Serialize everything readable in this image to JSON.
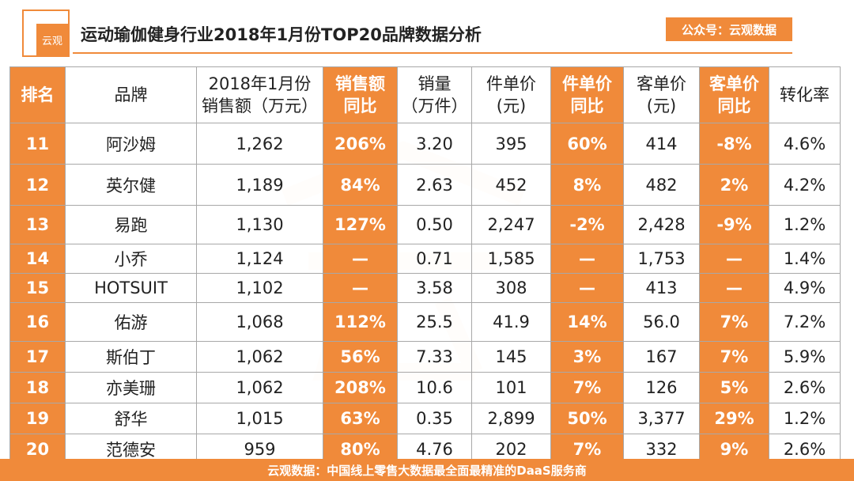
{
  "header": {
    "logo_text": "云观",
    "title": "运动瑜伽健身行业2018年1月份TOP20品牌数据分析",
    "wechat_badge": "公众号：云观数据"
  },
  "colors": {
    "accent": "#f08a3a"
  },
  "table": {
    "headers": {
      "rank": "排名",
      "brand": "品牌",
      "sales_line1": "2018年1月份",
      "sales_line2": "销售额（万元）",
      "sales_yoy_line1": "销售额",
      "sales_yoy_line2": "同比",
      "volume_line1": "销量",
      "volume_line2": "（万件）",
      "unit_price_line1": "件单价",
      "unit_price_line2": "(元)",
      "unit_price_yoy_line1": "件单价",
      "unit_price_yoy_line2": "同比",
      "cust_price_line1": "客单价",
      "cust_price_line2": "(元)",
      "cust_price_yoy_line1": "客单价",
      "cust_price_yoy_line2": "同比",
      "conversion": "转化率"
    },
    "rows": [
      {
        "rank": "11",
        "brand": "阿沙姆",
        "sales": "1,262",
        "sales_yoy": "206%",
        "volume": "3.20",
        "unit_price": "395",
        "unit_price_yoy": "60%",
        "cust_price": "414",
        "cust_price_yoy": "-8%",
        "conversion": "4.6%"
      },
      {
        "rank": "12",
        "brand": "英尔健",
        "sales": "1,189",
        "sales_yoy": "84%",
        "volume": "2.63",
        "unit_price": "452",
        "unit_price_yoy": "8%",
        "cust_price": "482",
        "cust_price_yoy": "2%",
        "conversion": "4.2%"
      },
      {
        "rank": "13",
        "brand": "易跑",
        "sales": "1,130",
        "sales_yoy": "127%",
        "volume": "0.50",
        "unit_price": "2,247",
        "unit_price_yoy": "-2%",
        "cust_price": "2,428",
        "cust_price_yoy": "-9%",
        "conversion": "1.2%"
      },
      {
        "rank": "14",
        "brand": "小乔",
        "sales": "1,124",
        "sales_yoy": "—",
        "volume": "0.71",
        "unit_price": "1,585",
        "unit_price_yoy": "—",
        "cust_price": "1,753",
        "cust_price_yoy": "—",
        "conversion": "1.4%"
      },
      {
        "rank": "15",
        "brand": "HOTSUIT",
        "sales": "1,102",
        "sales_yoy": "—",
        "volume": "3.58",
        "unit_price": "308",
        "unit_price_yoy": "—",
        "cust_price": "413",
        "cust_price_yoy": "—",
        "conversion": "4.9%"
      },
      {
        "rank": "16",
        "brand": "佑游",
        "sales": "1,068",
        "sales_yoy": "112%",
        "volume": "25.5",
        "unit_price": "41.9",
        "unit_price_yoy": "14%",
        "cust_price": "56.0",
        "cust_price_yoy": "7%",
        "conversion": "7.2%"
      },
      {
        "rank": "17",
        "brand": "斯伯丁",
        "sales": "1,062",
        "sales_yoy": "56%",
        "volume": "7.33",
        "unit_price": "145",
        "unit_price_yoy": "3%",
        "cust_price": "167",
        "cust_price_yoy": "7%",
        "conversion": "5.9%"
      },
      {
        "rank": "18",
        "brand": "亦美珊",
        "sales": "1,062",
        "sales_yoy": "208%",
        "volume": "10.6",
        "unit_price": "101",
        "unit_price_yoy": "7%",
        "cust_price": "126",
        "cust_price_yoy": "5%",
        "conversion": "2.6%"
      },
      {
        "rank": "19",
        "brand": "舒华",
        "sales": "1,015",
        "sales_yoy": "63%",
        "volume": "0.35",
        "unit_price": "2,899",
        "unit_price_yoy": "50%",
        "cust_price": "3,377",
        "cust_price_yoy": "29%",
        "conversion": "1.2%"
      },
      {
        "rank": "20",
        "brand": "范德安",
        "sales": "959",
        "sales_yoy": "80%",
        "volume": "4.76",
        "unit_price": "202",
        "unit_price_yoy": "7%",
        "cust_price": "332",
        "cust_price_yoy": "9%",
        "conversion": "2.6%"
      }
    ]
  },
  "footer": {
    "text": "云观数据：中国线上零售大数据最全面最精准的DaaS服务商"
  }
}
